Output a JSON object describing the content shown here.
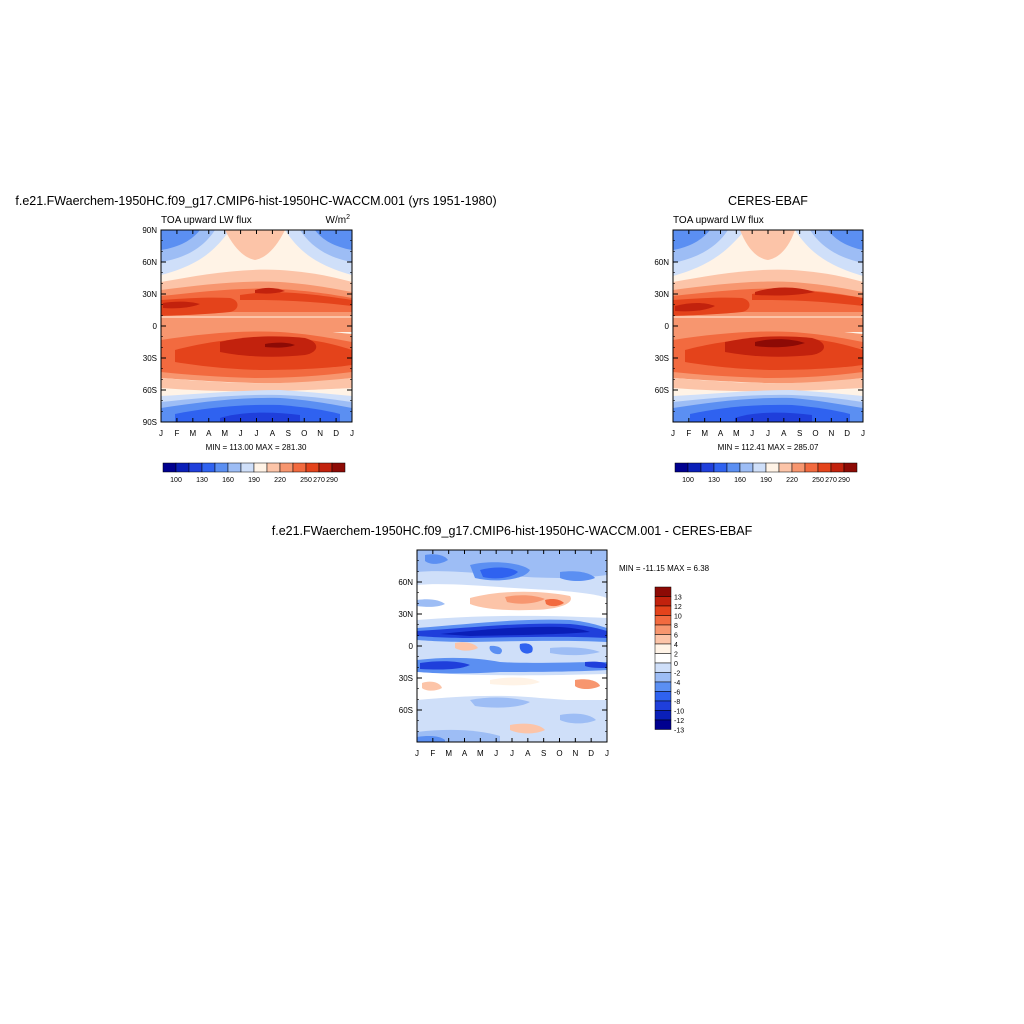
{
  "panels": {
    "model": {
      "title": "f.e21.FWaerchem-1950HC.f09_g17.CMIP6-hist-1950HC-WACCM.001 (yrs 1951-1980)",
      "variable": "TOA upward LW flux",
      "units_base": "W/m",
      "units_exp": "2",
      "minmax": "MIN = 113.00 MAX = 281.30"
    },
    "obs": {
      "title": "CERES-EBAF",
      "variable": "TOA upward LW flux",
      "minmax": "MIN = 112.41 MAX = 285.07"
    },
    "diff": {
      "title": "f.e21.FWaerchem-1950HC.f09_g17.CMIP6-hist-1950HC-WACCM.001 - CERES-EBAF",
      "minmax": "MIN = -11.15 MAX =   6.38"
    }
  },
  "chart_data": [
    {
      "type": "heatmap",
      "name": "model",
      "x": [
        "J",
        "F",
        "M",
        "A",
        "M",
        "J",
        "J",
        "A",
        "S",
        "O",
        "N",
        "D",
        "J"
      ],
      "y_ticks": [
        "90N",
        "60N",
        "30N",
        "0",
        "30S",
        "60S",
        "90S"
      ],
      "ylim": [
        -90,
        90
      ],
      "colorbar_labels": [
        "100",
        "130",
        "160",
        "190",
        "220",
        "250",
        "270",
        "290"
      ],
      "min": 113.0,
      "max": 281.3
    },
    {
      "type": "heatmap",
      "name": "obs",
      "x": [
        "J",
        "F",
        "M",
        "A",
        "M",
        "J",
        "J",
        "A",
        "S",
        "O",
        "N",
        "D",
        "J"
      ],
      "y_ticks": [
        "60N",
        "30N",
        "0",
        "30S",
        "60S"
      ],
      "ylim": [
        -90,
        90
      ],
      "colorbar_labels": [
        "100",
        "130",
        "160",
        "190",
        "220",
        "250",
        "270",
        "290"
      ],
      "min": 112.41,
      "max": 285.07
    },
    {
      "type": "heatmap",
      "name": "difference",
      "x": [
        "J",
        "F",
        "M",
        "A",
        "M",
        "J",
        "J",
        "A",
        "S",
        "O",
        "N",
        "D",
        "J"
      ],
      "y_ticks": [
        "60N",
        "30N",
        "0",
        "30S",
        "60S"
      ],
      "ylim": [
        -90,
        90
      ],
      "colorbar_labels": [
        "13",
        "12",
        "10",
        "8",
        "6",
        "4",
        "2",
        "0",
        "-2",
        "-4",
        "-6",
        "-8",
        "-10",
        "-12",
        "-13"
      ],
      "min": -11.15,
      "max": 6.38
    }
  ],
  "colors": {
    "abs_palette": [
      "#00008f",
      "#0a1fb8",
      "#1f3fdb",
      "#2f62f0",
      "#5b8ff2",
      "#9dbdf5",
      "#cfdff9",
      "#fff3e6",
      "#fcc4a8",
      "#f7966f",
      "#f26a3f",
      "#e4431b",
      "#c2220d",
      "#8d0a05"
    ],
    "diff_palette": [
      "#8d0a05",
      "#c2220d",
      "#e4431b",
      "#f26a3f",
      "#f7966f",
      "#fcc4a8",
      "#fff3e6",
      "#ffffff",
      "#cfdff9",
      "#9dbdf5",
      "#5b8ff2",
      "#2f62f0",
      "#1f3fdb",
      "#0a1fb8",
      "#00008f"
    ]
  }
}
